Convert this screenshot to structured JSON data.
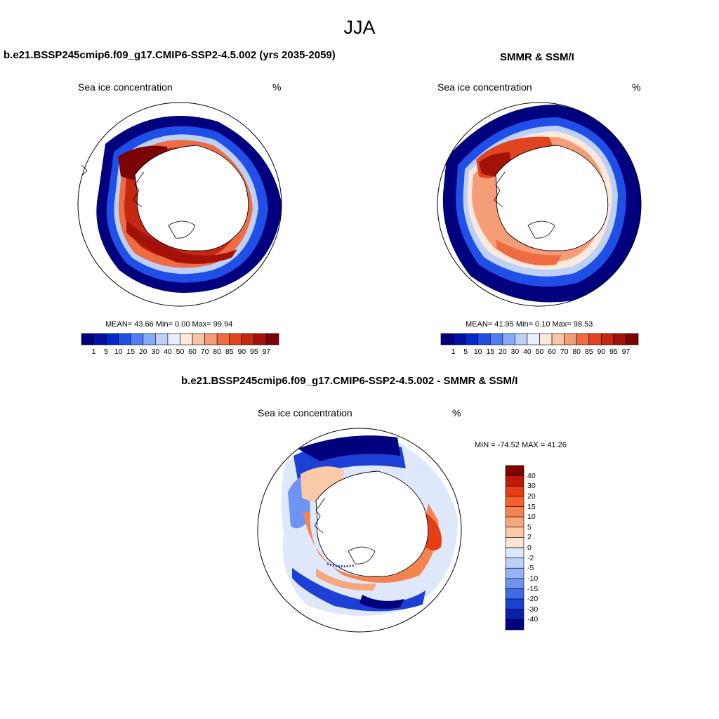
{
  "figure": {
    "season": "JJA",
    "panels": [
      {
        "title": "b.e21.BSSP245cmip6.f09_g17.CMIP6-SSP2-4.5.002 (yrs 2035-2059)",
        "variable": "Sea ice concentration",
        "units": "%",
        "stats": "MEAN=  43.66  Min=   0.00  Max=  99.94"
      },
      {
        "title": "SMMR & SSM/I",
        "variable": "Sea ice concentration",
        "units": "%",
        "stats": "MEAN=  41.95  Min=   0.10  Max=  98.53"
      },
      {
        "title": "b.e21.BSSP245cmip6.f09_g17.CMIP6-SSP2-4.5.002 - SMMR & SSM/I",
        "variable": "Sea ice concentration",
        "units": "%",
        "stats": "MIN = -74.52 MAX =  41.26"
      }
    ]
  },
  "colorbar_conc": {
    "labels": [
      "1",
      "5",
      "10",
      "15",
      "20",
      "30",
      "40",
      "50",
      "60",
      "70",
      "80",
      "85",
      "90",
      "95",
      "97"
    ],
    "colors": [
      "#00007f",
      "#0010a6",
      "#0028cc",
      "#1f4fe6",
      "#4f7ff2",
      "#86aaf7",
      "#bcd0fa",
      "#e8eefd",
      "#fde8dc",
      "#f9c4a6",
      "#f59c78",
      "#ef6c42",
      "#e0431f",
      "#c42810",
      "#a31208",
      "#7c0303"
    ]
  },
  "colorbar_diff": {
    "labels": [
      "40",
      "30",
      "20",
      "15",
      "10",
      "5",
      "2",
      "0",
      "-2",
      "-5",
      "-10",
      "-15",
      "-20",
      "-30",
      "-40"
    ],
    "colors": [
      "#800000",
      "#bf1b04",
      "#e53d14",
      "#f2622e",
      "#f58550",
      "#f8a77c",
      "#fbc8aa",
      "#fde5d6",
      "#dfe8fb",
      "#bccff7",
      "#97b3f4",
      "#6e93f0",
      "#3f6be8",
      "#1c3fd4",
      "#0a1fa8",
      "#00007f"
    ]
  }
}
